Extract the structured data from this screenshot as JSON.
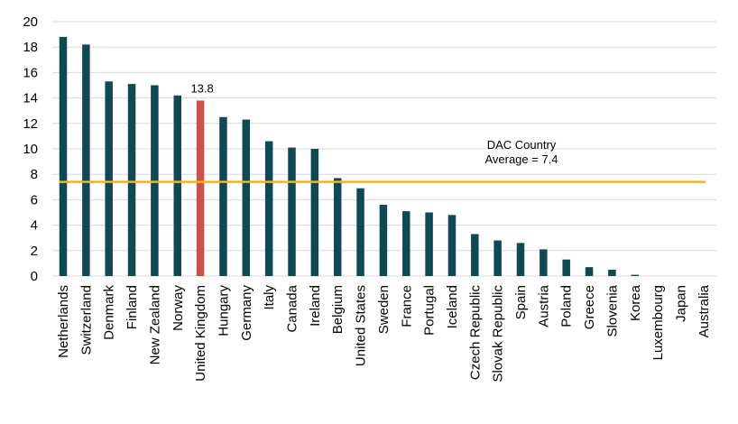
{
  "chart_data": {
    "type": "bar",
    "title": "",
    "xlabel": "",
    "ylabel": "",
    "ylim": [
      0,
      20
    ],
    "yticks": [
      "0",
      "2",
      "4",
      "6",
      "8",
      "10",
      "12",
      "14",
      "16",
      "18",
      "20"
    ],
    "grid": true,
    "categories": [
      "Netherlands",
      "Switzerland",
      "Denmark",
      "Finland",
      "New Zealand",
      "Norway",
      "United Kingdom",
      "Hungary",
      "Germany",
      "Italy",
      "Canada",
      "Ireland",
      "Belgium",
      "United States",
      "Sweden",
      "France",
      "Portugal",
      "Iceland",
      "Czech Republic",
      "Slovak Republic",
      "Spain",
      "Austria",
      "Poland",
      "Greece",
      "Slovenia",
      "Korea",
      "Luxembourg",
      "Japan",
      "Australia"
    ],
    "values": [
      18.8,
      18.2,
      15.3,
      15.1,
      15.0,
      14.2,
      13.8,
      12.5,
      12.3,
      10.6,
      10.1,
      10.0,
      7.7,
      6.9,
      5.6,
      5.1,
      5.0,
      4.8,
      3.3,
      2.8,
      2.6,
      2.1,
      1.3,
      0.7,
      0.5,
      0.1,
      0.0,
      0.0,
      0.0
    ],
    "highlight_index": 6,
    "bar_label": "13.8",
    "colors": {
      "bar": "#0d4a55",
      "highlight": "#c9524b",
      "average_line": "#f5b324",
      "grid": "#d9d9d9"
    },
    "reference_line": {
      "value": 7.4,
      "label_line1": "DAC Country",
      "label_line2": "Average = 7.4"
    }
  }
}
